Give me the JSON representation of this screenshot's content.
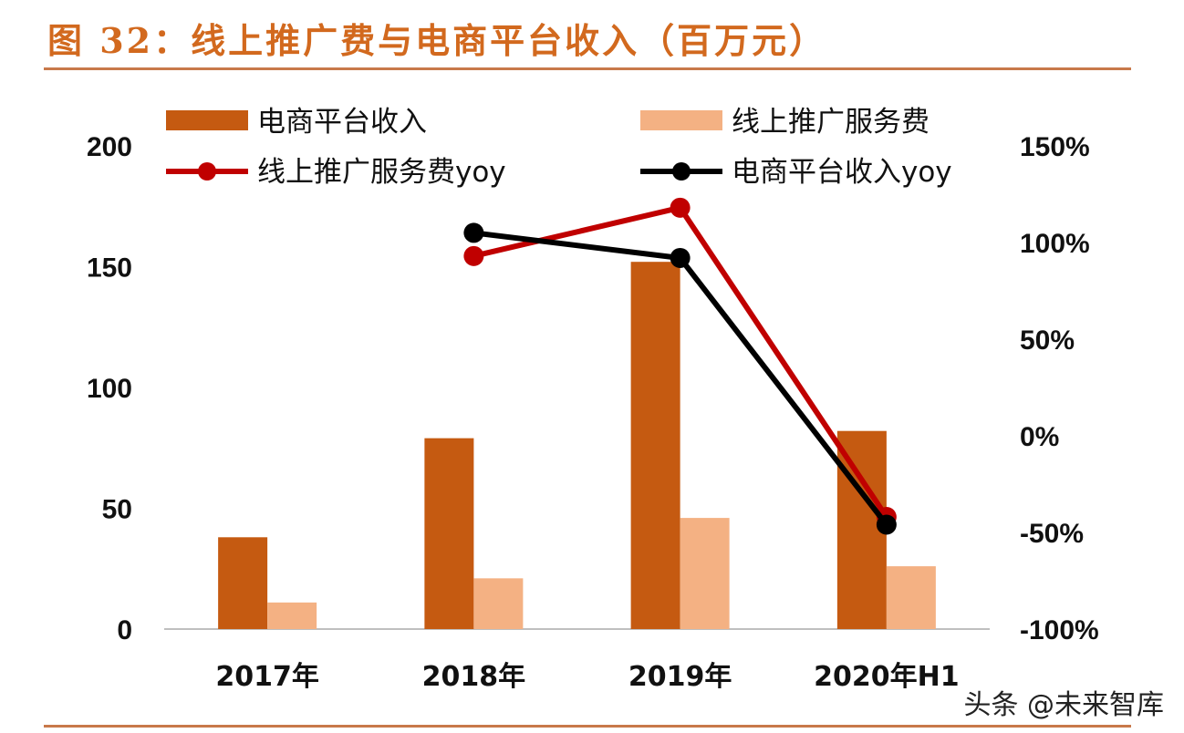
{
  "figure": {
    "title": "图 32：线上推广费与电商平台收入（百万元）",
    "watermark": "头条 @未来智库"
  },
  "colors": {
    "title": "#d2691e",
    "rule": "#c8794a",
    "bar_revenue": "#c55a11",
    "bar_fee": "#f4b183",
    "line_fee_yoy": "#c00000",
    "line_rev_yoy": "#000000",
    "axis": "#bfbfbf"
  },
  "chart_data": {
    "type": "bar",
    "categories": [
      "2017年",
      "2018年",
      "2019年",
      "2020年H1"
    ],
    "y_left": {
      "ticks": [
        "0",
        "50",
        "100",
        "150",
        "200"
      ],
      "min": 0,
      "max": 200
    },
    "y_right": {
      "ticks": [
        "-100%",
        "-50%",
        "0%",
        "50%",
        "100%",
        "150%"
      ],
      "min": -100,
      "max": 150
    },
    "series": [
      {
        "name": "电商平台收入",
        "type": "bar",
        "axis": "left",
        "color": "#c55a11",
        "values": [
          38,
          79,
          152,
          82
        ]
      },
      {
        "name": "线上推广服务费",
        "type": "bar",
        "axis": "left",
        "color": "#f4b183",
        "values": [
          11,
          21,
          46,
          26
        ]
      },
      {
        "name": "线上推广服务费yoy",
        "type": "line",
        "axis": "right",
        "color": "#c00000",
        "values": [
          null,
          93,
          118,
          -42
        ]
      },
      {
        "name": "电商平台收入yoy",
        "type": "line",
        "axis": "right",
        "color": "#000000",
        "values": [
          null,
          105,
          92,
          -46
        ]
      }
    ],
    "legend_position": "top"
  }
}
